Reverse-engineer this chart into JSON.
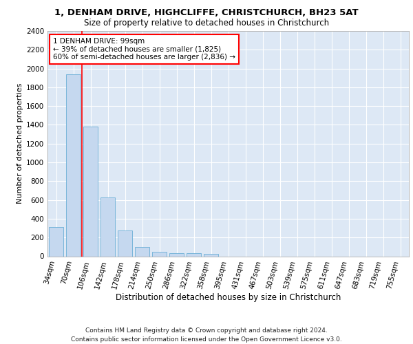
{
  "title_line1": "1, DENHAM DRIVE, HIGHCLIFFE, CHRISTCHURCH, BH23 5AT",
  "title_line2": "Size of property relative to detached houses in Christchurch",
  "xlabel": "Distribution of detached houses by size in Christchurch",
  "ylabel": "Number of detached properties",
  "footer_line1": "Contains HM Land Registry data © Crown copyright and database right 2024.",
  "footer_line2": "Contains public sector information licensed under the Open Government Licence v3.0.",
  "categories": [
    "34sqm",
    "70sqm",
    "106sqm",
    "142sqm",
    "178sqm",
    "214sqm",
    "250sqm",
    "286sqm",
    "322sqm",
    "358sqm",
    "395sqm",
    "431sqm",
    "467sqm",
    "503sqm",
    "539sqm",
    "575sqm",
    "611sqm",
    "647sqm",
    "683sqm",
    "719sqm",
    "755sqm"
  ],
  "values": [
    315,
    1940,
    1380,
    630,
    275,
    100,
    48,
    35,
    30,
    22,
    0,
    0,
    0,
    0,
    0,
    0,
    0,
    0,
    0,
    0,
    0
  ],
  "bar_color": "#c5d8ef",
  "bar_edge_color": "#6baed6",
  "annotation_text": "1 DENHAM DRIVE: 99sqm\n← 39% of detached houses are smaller (1,825)\n60% of semi-detached houses are larger (2,836) →",
  "annotation_box_color": "white",
  "annotation_box_edge_color": "red",
  "vline_x": 1.5,
  "vline_color": "red",
  "ylim": [
    0,
    2400
  ],
  "background_color": "#dde8f5",
  "grid_color": "white",
  "title_fontsize": 9.5,
  "subtitle_fontsize": 8.5,
  "axis_label_fontsize": 8,
  "tick_fontsize": 7.5,
  "annotation_fontsize": 7.5,
  "footer_fontsize": 6.5
}
